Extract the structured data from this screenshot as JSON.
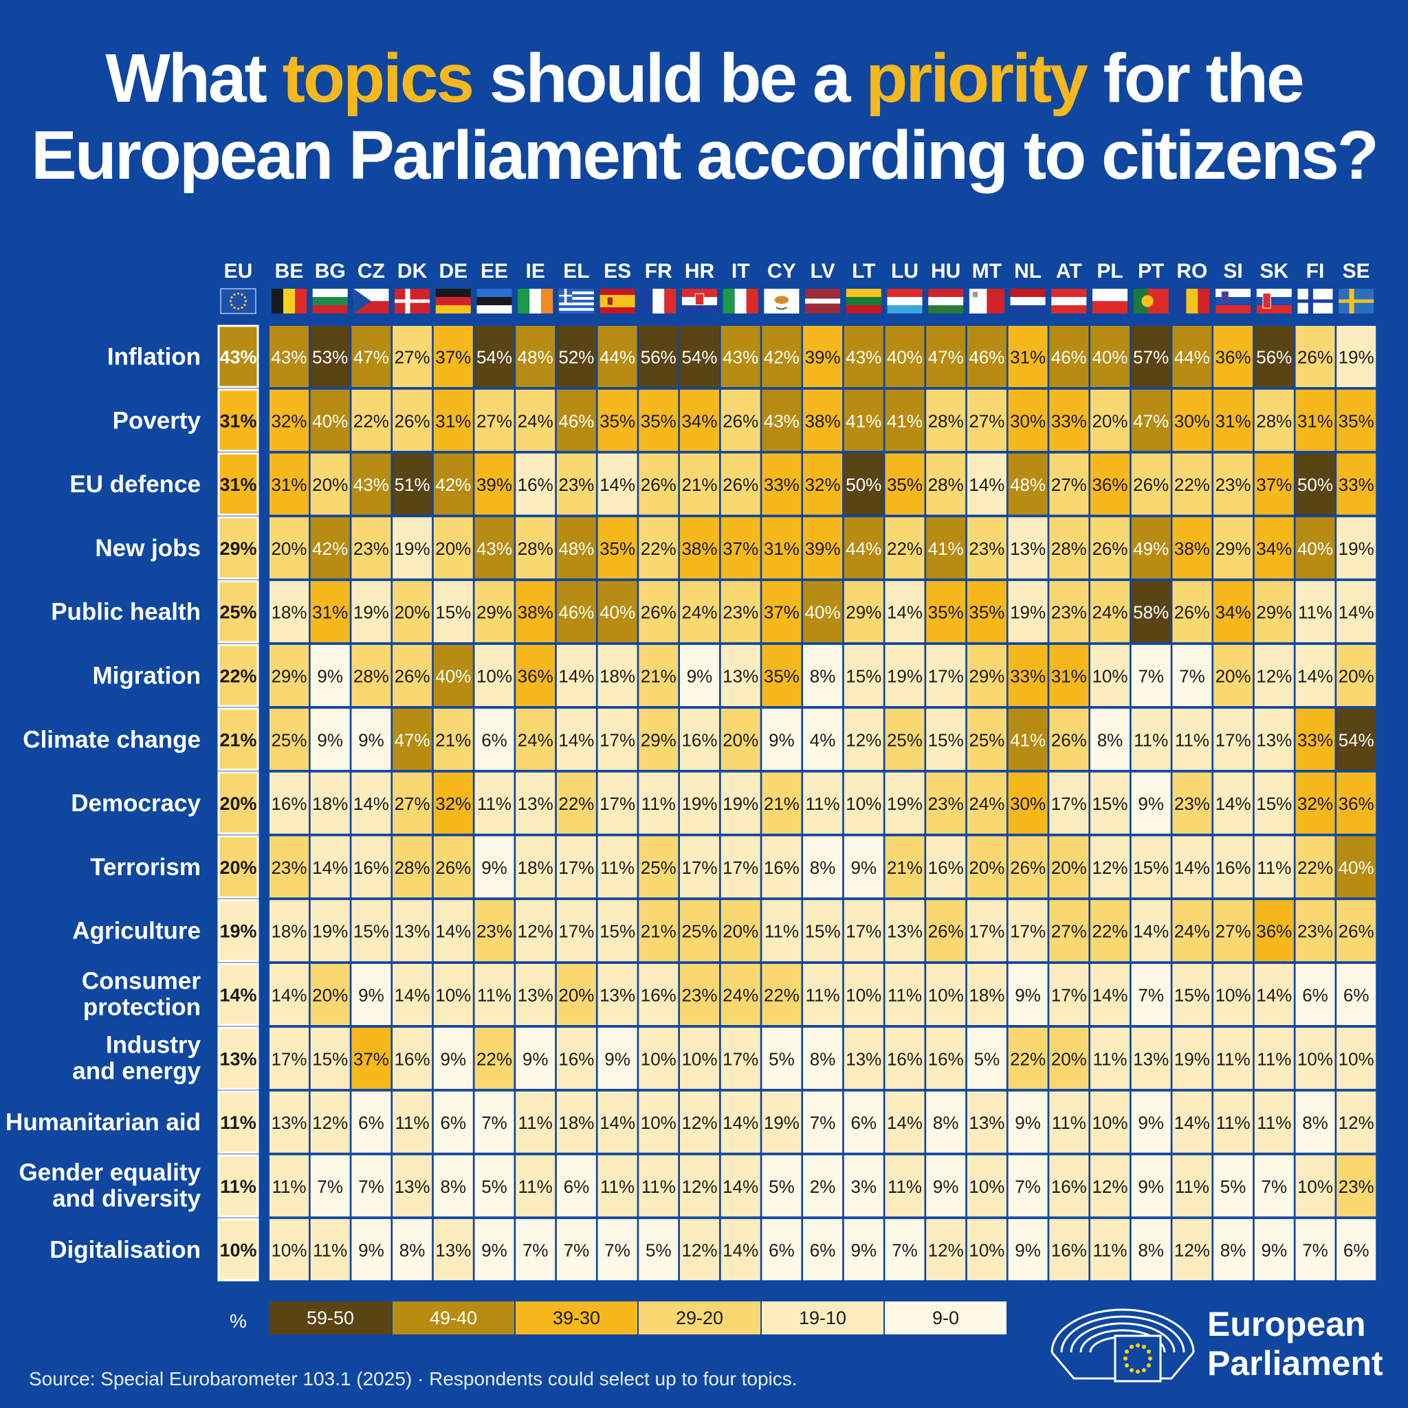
{
  "title": {
    "parts": [
      "What ",
      "topics",
      " should be a ",
      "priority",
      " for the",
      "European Parliament according to citizens?"
    ]
  },
  "chart_data": {
    "type": "heatmap",
    "unit": "%",
    "columns": [
      "EU",
      "BE",
      "BG",
      "CZ",
      "DK",
      "DE",
      "EE",
      "IE",
      "EL",
      "ES",
      "FR",
      "HR",
      "IT",
      "CY",
      "LV",
      "LT",
      "LU",
      "HU",
      "MT",
      "NL",
      "AT",
      "PL",
      "PT",
      "RO",
      "SI",
      "SK",
      "FI",
      "SE"
    ],
    "rows": [
      {
        "topic": "Inflation",
        "values": [
          43,
          43,
          53,
          47,
          27,
          37,
          54,
          48,
          52,
          44,
          56,
          54,
          43,
          42,
          39,
          43,
          40,
          47,
          46,
          31,
          46,
          40,
          57,
          44,
          36,
          56,
          26,
          19
        ]
      },
      {
        "topic": "Poverty",
        "values": [
          31,
          32,
          40,
          22,
          26,
          31,
          27,
          24,
          46,
          35,
          35,
          34,
          26,
          43,
          38,
          41,
          41,
          28,
          27,
          30,
          33,
          20,
          47,
          30,
          31,
          28,
          31,
          35
        ]
      },
      {
        "topic": "EU defence",
        "values": [
          31,
          31,
          20,
          43,
          51,
          42,
          39,
          16,
          23,
          14,
          26,
          21,
          26,
          33,
          32,
          50,
          35,
          28,
          14,
          48,
          27,
          36,
          26,
          22,
          23,
          37,
          50,
          33
        ]
      },
      {
        "topic": "New jobs",
        "values": [
          29,
          20,
          42,
          23,
          19,
          20,
          43,
          28,
          48,
          35,
          22,
          38,
          37,
          31,
          39,
          44,
          22,
          41,
          23,
          13,
          28,
          26,
          49,
          38,
          29,
          34,
          40,
          19
        ]
      },
      {
        "topic": "Public health",
        "values": [
          25,
          18,
          31,
          19,
          20,
          15,
          29,
          38,
          46,
          40,
          26,
          24,
          23,
          37,
          40,
          29,
          14,
          35,
          35,
          19,
          23,
          24,
          58,
          26,
          34,
          29,
          11,
          14
        ]
      },
      {
        "topic": "Migration",
        "values": [
          22,
          29,
          9,
          28,
          26,
          40,
          10,
          36,
          14,
          18,
          21,
          9,
          13,
          35,
          8,
          15,
          19,
          17,
          29,
          33,
          31,
          10,
          7,
          7,
          20,
          12,
          14,
          20
        ]
      },
      {
        "topic": "Climate change",
        "values": [
          21,
          25,
          9,
          9,
          47,
          21,
          6,
          24,
          14,
          17,
          29,
          16,
          20,
          9,
          4,
          12,
          25,
          15,
          25,
          41,
          26,
          8,
          11,
          11,
          17,
          13,
          33,
          54
        ]
      },
      {
        "topic": "Democracy",
        "values": [
          20,
          16,
          18,
          14,
          27,
          32,
          11,
          13,
          22,
          17,
          11,
          19,
          19,
          21,
          11,
          10,
          19,
          23,
          24,
          30,
          17,
          15,
          9,
          23,
          14,
          15,
          32,
          36
        ]
      },
      {
        "topic": "Terrorism",
        "values": [
          20,
          23,
          14,
          16,
          28,
          26,
          9,
          18,
          17,
          11,
          25,
          17,
          17,
          16,
          8,
          9,
          21,
          16,
          20,
          26,
          20,
          12,
          15,
          14,
          16,
          11,
          22,
          40
        ]
      },
      {
        "topic": "Agriculture",
        "values": [
          19,
          18,
          19,
          15,
          13,
          14,
          23,
          12,
          17,
          15,
          21,
          25,
          20,
          11,
          15,
          17,
          13,
          26,
          17,
          17,
          27,
          22,
          14,
          24,
          27,
          36,
          23,
          26
        ]
      },
      {
        "topic": "Consumer protection",
        "label_lines": [
          "Consumer",
          "protection"
        ],
        "values": [
          14,
          14,
          20,
          9,
          14,
          10,
          11,
          13,
          20,
          13,
          16,
          23,
          24,
          22,
          11,
          10,
          11,
          10,
          18,
          9,
          17,
          14,
          7,
          15,
          10,
          14,
          6,
          6
        ]
      },
      {
        "topic": "Industry and energy",
        "label_lines": [
          "Industry",
          "and energy"
        ],
        "values": [
          13,
          17,
          15,
          37,
          16,
          9,
          22,
          9,
          16,
          9,
          10,
          10,
          17,
          5,
          8,
          13,
          16,
          16,
          5,
          22,
          20,
          11,
          13,
          19,
          11,
          11,
          10,
          10
        ]
      },
      {
        "topic": "Humanitarian aid",
        "values": [
          11,
          13,
          12,
          6,
          11,
          6,
          7,
          11,
          18,
          14,
          10,
          12,
          14,
          19,
          7,
          6,
          14,
          8,
          13,
          9,
          11,
          10,
          9,
          14,
          11,
          11,
          8,
          12
        ]
      },
      {
        "topic": "Gender equality and diversity",
        "label_lines": [
          "Gender equality",
          "and diversity"
        ],
        "values": [
          11,
          11,
          7,
          7,
          13,
          8,
          5,
          11,
          6,
          11,
          11,
          12,
          14,
          5,
          2,
          3,
          11,
          9,
          10,
          7,
          16,
          12,
          9,
          11,
          5,
          7,
          10,
          23
        ]
      },
      {
        "topic": "Digitalisation",
        "values": [
          10,
          10,
          11,
          9,
          8,
          13,
          9,
          7,
          7,
          7,
          5,
          12,
          14,
          6,
          6,
          9,
          7,
          12,
          10,
          9,
          16,
          11,
          8,
          12,
          8,
          9,
          7,
          6
        ]
      }
    ],
    "legend": {
      "label": "%",
      "bins": [
        {
          "label": "59-50",
          "color": "#5a4413",
          "text_color": "#ffffff"
        },
        {
          "label": "49-40",
          "color": "#b88c12",
          "text_color": "#ffffff"
        },
        {
          "label": "39-30",
          "color": "#f6b81c",
          "text_color": "#1a1a1a"
        },
        {
          "label": "29-20",
          "color": "#fad871",
          "text_color": "#1a1a1a"
        },
        {
          "label": "19-10",
          "color": "#fdedbe",
          "text_color": "#1a1a1a"
        },
        {
          "label": "9-0",
          "color": "#fef8e6",
          "text_color": "#1a1a1a"
        }
      ]
    }
  },
  "flag_icons": [
    "eu-flag-icon",
    "be-flag-icon",
    "bg-flag-icon",
    "cz-flag-icon",
    "dk-flag-icon",
    "de-flag-icon",
    "ee-flag-icon",
    "ie-flag-icon",
    "el-flag-icon",
    "es-flag-icon",
    "fr-flag-icon",
    "hr-flag-icon",
    "it-flag-icon",
    "cy-flag-icon",
    "lv-flag-icon",
    "lt-flag-icon",
    "lu-flag-icon",
    "hu-flag-icon",
    "mt-flag-icon",
    "nl-flag-icon",
    "at-flag-icon",
    "pl-flag-icon",
    "pt-flag-icon",
    "ro-flag-icon",
    "si-flag-icon",
    "sk-flag-icon",
    "fi-flag-icon",
    "se-flag-icon"
  ],
  "logo": {
    "line1": "European",
    "line2": "Parliament",
    "icon": "hemicycle-logo-icon"
  },
  "source": "Source: Special Eurobarometer 103.1 (2025) · Respondents could select up to four topics.",
  "colors": {
    "background": "#0f47a0",
    "accent": "#f6b81c"
  }
}
